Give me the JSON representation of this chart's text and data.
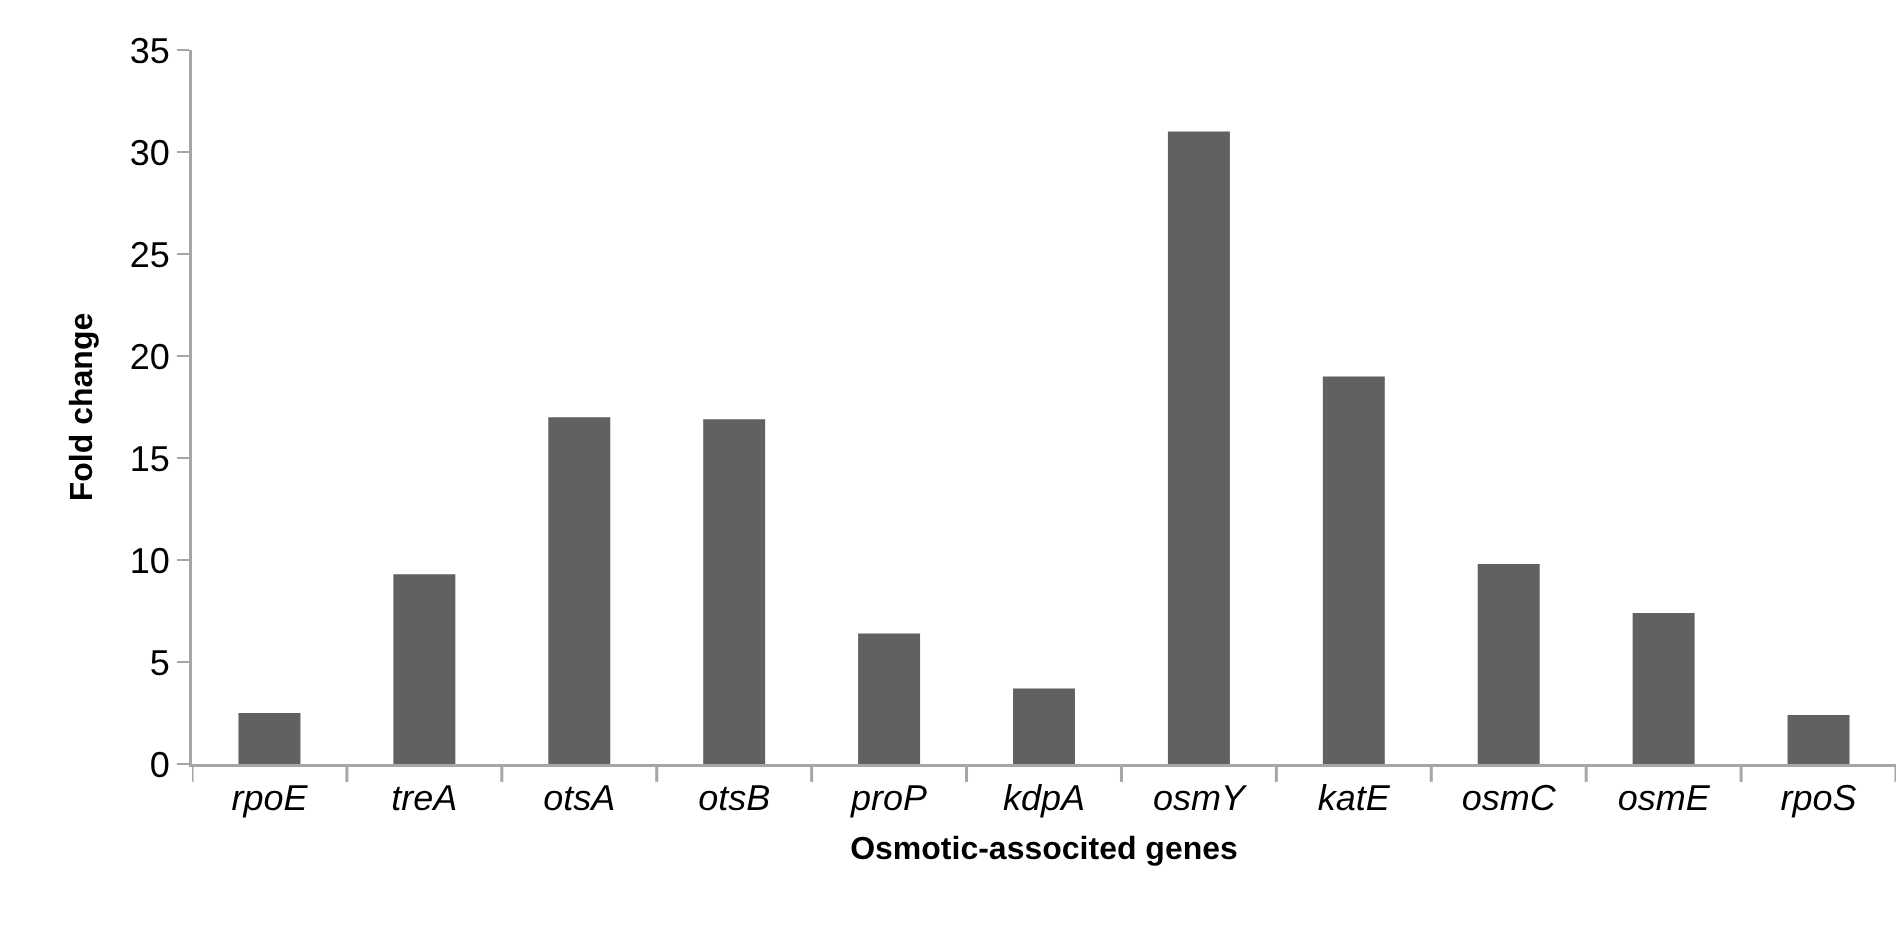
{
  "chart_data": {
    "type": "bar",
    "xlabel": "Osmotic-associted genes",
    "ylabel": "Fold change",
    "categories": [
      "rpoE",
      "treA",
      "otsA",
      "otsB",
      "proP",
      "kdpA",
      "osmY",
      "katE",
      "osmC",
      "osmE",
      "rpoS"
    ],
    "values": [
      2.5,
      9.3,
      17.0,
      16.9,
      6.4,
      3.7,
      31,
      19,
      9.8,
      7.4,
      2.4
    ],
    "color": "#616161",
    "ylim": [
      0,
      35
    ],
    "yticks": [
      0,
      5,
      10,
      15,
      20,
      25,
      30,
      35
    ],
    "grid": false,
    "legend": false
  }
}
